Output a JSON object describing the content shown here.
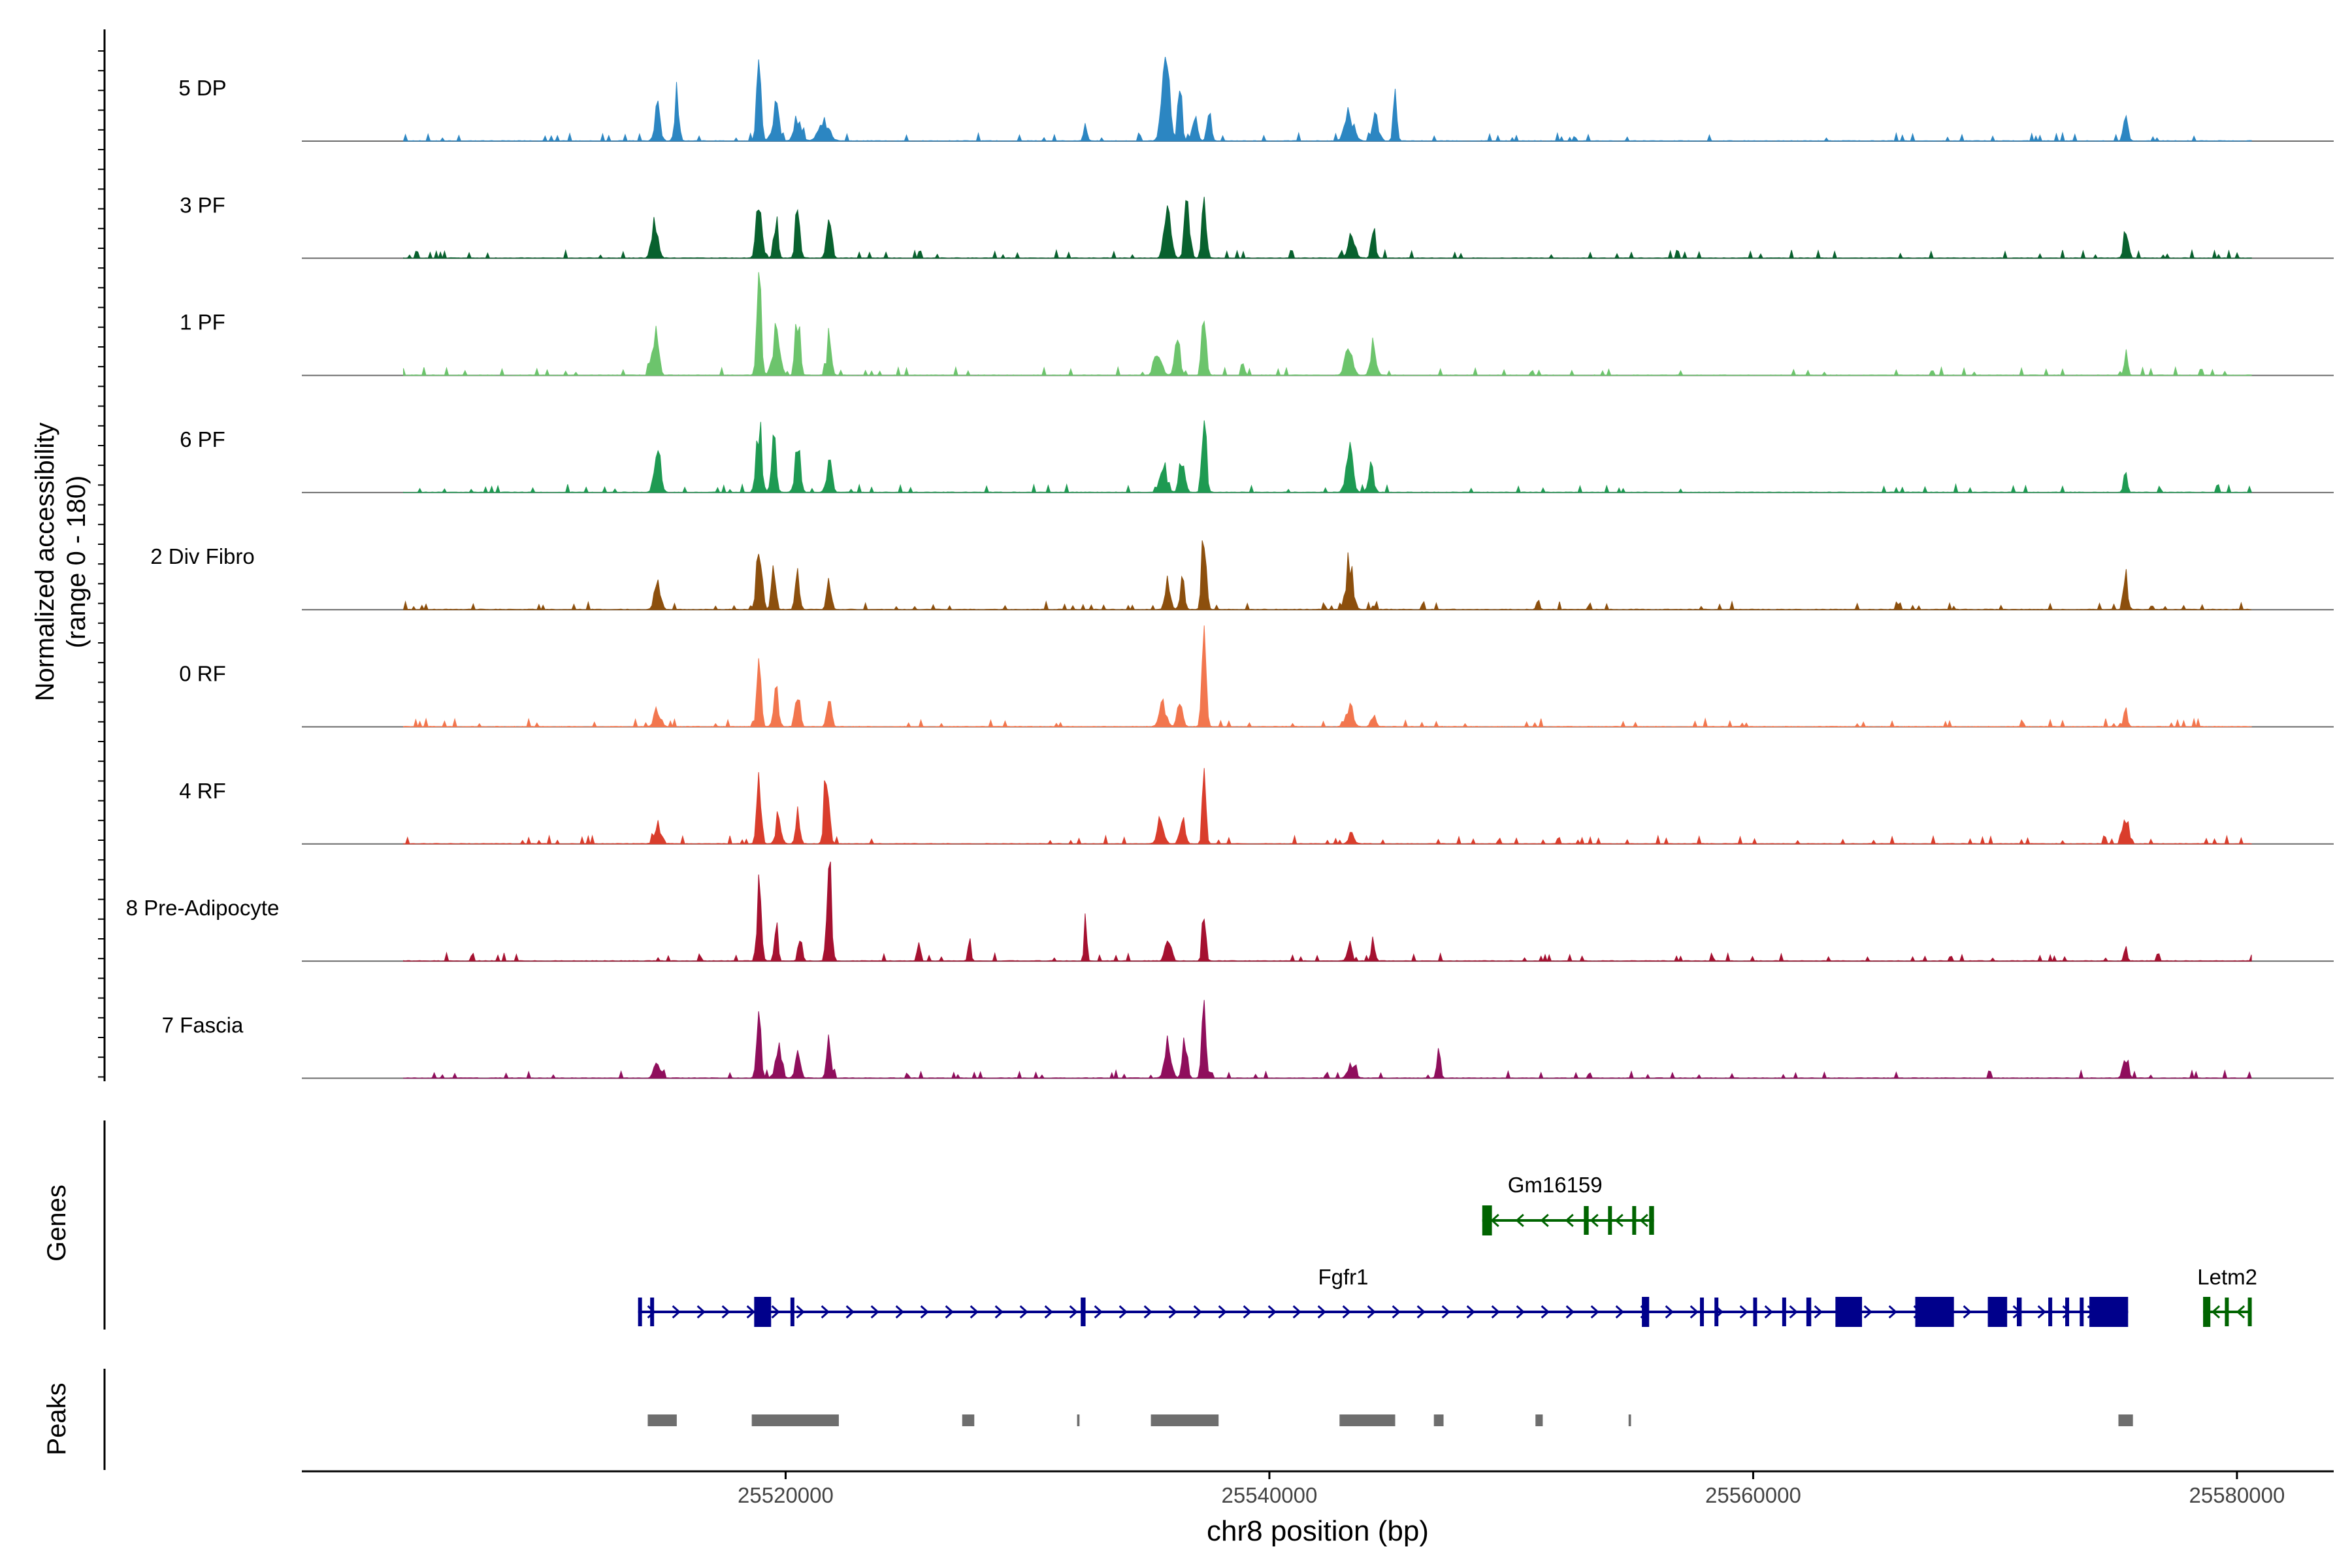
{
  "chart_data": {
    "type": "area",
    "subtype": "genome-coverage-track",
    "title": "",
    "xlabel": "chr8 position (bp)",
    "ylabel": "Normalized accessibility",
    "ylabel_sub": "(range 0 - 180)",
    "yrange": [
      0,
      180
    ],
    "xlim": [
      25500000,
      25584000
    ],
    "data_xlim": [
      25504200,
      25580600
    ],
    "xticks": [
      25520000,
      25540000,
      25560000,
      25580000
    ],
    "xtick_labels": [
      "25520000",
      "25540000",
      "25560000",
      "25580000"
    ],
    "track_labels": {
      "genes": "Genes",
      "peaks": "Peaks"
    },
    "tracks": [
      {
        "name": "5 DP",
        "color": "#2c86c2",
        "peaks": [
          [
            25514700,
            0.35,
            160
          ],
          [
            25515500,
            0.5,
            130
          ],
          [
            25518900,
            0.85,
            130
          ],
          [
            25519600,
            0.35,
            200
          ],
          [
            25520500,
            0.25,
            200
          ],
          [
            25521600,
            0.2,
            300
          ],
          [
            25532400,
            0.15,
            100
          ],
          [
            25535700,
            1.0,
            200
          ],
          [
            25536300,
            0.55,
            120
          ],
          [
            25536900,
            0.3,
            150
          ],
          [
            25537500,
            0.35,
            120
          ],
          [
            25543300,
            0.3,
            250
          ],
          [
            25544400,
            0.25,
            180
          ],
          [
            25545200,
            0.5,
            100
          ],
          [
            25575400,
            0.3,
            120
          ]
        ]
      },
      {
        "name": "3 PF",
        "color": "#08612e",
        "peaks": [
          [
            25514600,
            0.4,
            180
          ],
          [
            25518900,
            0.65,
            150
          ],
          [
            25519600,
            0.4,
            120
          ],
          [
            25520500,
            0.6,
            120
          ],
          [
            25521800,
            0.35,
            150
          ],
          [
            25535800,
            0.7,
            180
          ],
          [
            25536600,
            0.6,
            150
          ],
          [
            25537300,
            0.9,
            120
          ],
          [
            25543400,
            0.3,
            200
          ],
          [
            25544300,
            0.35,
            120
          ],
          [
            25575400,
            0.35,
            120
          ]
        ]
      },
      {
        "name": "1 PF",
        "color": "#6cc46c",
        "peaks": [
          [
            25514600,
            0.5,
            180
          ],
          [
            25518900,
            1.0,
            130
          ],
          [
            25519600,
            0.45,
            200
          ],
          [
            25520500,
            0.7,
            130
          ],
          [
            25521800,
            0.4,
            130
          ],
          [
            25535400,
            0.3,
            200
          ],
          [
            25536200,
            0.45,
            150
          ],
          [
            25537300,
            0.85,
            120
          ],
          [
            25538900,
            0.2,
            80
          ],
          [
            25543300,
            0.35,
            200
          ],
          [
            25544300,
            0.35,
            150
          ],
          [
            25575400,
            0.25,
            100
          ]
        ]
      },
      {
        "name": "6 PF",
        "color": "#1e9a52",
        "peaks": [
          [
            25514700,
            0.5,
            180
          ],
          [
            25518900,
            0.75,
            150
          ],
          [
            25519500,
            0.6,
            130
          ],
          [
            25520500,
            0.5,
            150
          ],
          [
            25521800,
            0.35,
            150
          ],
          [
            25535600,
            0.3,
            200
          ],
          [
            25536400,
            0.45,
            150
          ],
          [
            25537300,
            0.9,
            120
          ],
          [
            25543300,
            0.45,
            200
          ],
          [
            25544200,
            0.3,
            150
          ],
          [
            25575400,
            0.25,
            100
          ]
        ]
      },
      {
        "name": "2 Div Fibro",
        "color": "#8c4f0d",
        "peaks": [
          [
            25514700,
            0.3,
            180
          ],
          [
            25518900,
            0.8,
            150
          ],
          [
            25519500,
            0.55,
            120
          ],
          [
            25520500,
            0.45,
            120
          ],
          [
            25521800,
            0.3,
            130
          ],
          [
            25535800,
            0.3,
            150
          ],
          [
            25536400,
            0.4,
            120
          ],
          [
            25537300,
            0.9,
            120
          ],
          [
            25543300,
            0.5,
            200
          ],
          [
            25551100,
            0.15,
            80
          ],
          [
            25575400,
            0.35,
            120
          ]
        ]
      },
      {
        "name": "0 RF",
        "color": "#f2764e",
        "peaks": [
          [
            25514700,
            0.2,
            180
          ],
          [
            25518900,
            0.6,
            120
          ],
          [
            25519600,
            0.45,
            130
          ],
          [
            25520500,
            0.4,
            120
          ],
          [
            25521800,
            0.4,
            120
          ],
          [
            25535600,
            0.25,
            200
          ],
          [
            25536300,
            0.3,
            150
          ],
          [
            25537300,
            1.0,
            120
          ],
          [
            25543300,
            0.2,
            200
          ],
          [
            25544300,
            0.15,
            120
          ],
          [
            25575400,
            0.2,
            100
          ]
        ]
      },
      {
        "name": "4 RF",
        "color": "#d93d2c",
        "peaks": [
          [
            25514700,
            0.2,
            180
          ],
          [
            25518900,
            0.6,
            130
          ],
          [
            25519700,
            0.3,
            150
          ],
          [
            25520500,
            0.3,
            120
          ],
          [
            25521700,
            0.9,
            130
          ],
          [
            25535500,
            0.25,
            180
          ],
          [
            25536400,
            0.3,
            150
          ],
          [
            25537300,
            0.75,
            100
          ],
          [
            25543400,
            0.15,
            150
          ],
          [
            25575400,
            0.3,
            150
          ]
        ]
      },
      {
        "name": "8 Pre-Adipocyte",
        "color": "#a51130",
        "peaks": [
          [
            25518900,
            0.75,
            120
          ],
          [
            25519600,
            0.4,
            100
          ],
          [
            25520600,
            0.3,
            100
          ],
          [
            25521800,
            1.0,
            130
          ],
          [
            25525500,
            0.3,
            80
          ],
          [
            25527600,
            0.25,
            80
          ],
          [
            25532400,
            0.4,
            80
          ],
          [
            25535800,
            0.3,
            150
          ],
          [
            25537300,
            0.65,
            100
          ],
          [
            25543300,
            0.2,
            120
          ],
          [
            25544300,
            0.25,
            100
          ],
          [
            25575400,
            0.15,
            80
          ]
        ]
      },
      {
        "name": "7 Fascia",
        "color": "#8f0e5c",
        "peaks": [
          [
            25514700,
            0.2,
            180
          ],
          [
            25518900,
            0.6,
            130
          ],
          [
            25519700,
            0.35,
            180
          ],
          [
            25520500,
            0.25,
            150
          ],
          [
            25521800,
            0.45,
            120
          ],
          [
            25535800,
            0.3,
            200
          ],
          [
            25536500,
            0.35,
            150
          ],
          [
            25537300,
            0.8,
            120
          ],
          [
            25543400,
            0.15,
            200
          ],
          [
            25547000,
            0.3,
            100
          ],
          [
            25575400,
            0.25,
            150
          ]
        ]
      }
    ],
    "genes": [
      {
        "name": "Gm16159",
        "strand": "-",
        "color": "#006400",
        "start": 25548800,
        "end": 25555900,
        "exons": [
          [
            25548800,
            25549200
          ],
          [
            25553000,
            25553200
          ],
          [
            25554000,
            25554150
          ],
          [
            25555000,
            25555150
          ],
          [
            25555700,
            25555900
          ]
        ]
      },
      {
        "name": "Fgfr1",
        "strand": "+",
        "color": "#00008b",
        "start": 25513900,
        "end": 25575500,
        "exons": [
          [
            25513900,
            25514050
          ],
          [
            25514400,
            25514550
          ],
          [
            25518700,
            25519400
          ],
          [
            25520200,
            25520350
          ],
          [
            25532200,
            25532400
          ],
          [
            25555400,
            25555700
          ],
          [
            25557800,
            25557950
          ],
          [
            25558400,
            25558550
          ],
          [
            25560000,
            25560150
          ],
          [
            25561200,
            25561350
          ],
          [
            25562200,
            25562400
          ],
          [
            25563400,
            25564500
          ],
          [
            25566700,
            25568300
          ],
          [
            25569700,
            25570500
          ],
          [
            25570900,
            25571100
          ],
          [
            25572200,
            25572350
          ],
          [
            25572900,
            25573050
          ],
          [
            25573500,
            25573650
          ],
          [
            25573900,
            25575500
          ]
        ]
      },
      {
        "name": "Letm2",
        "strand": "-",
        "color": "#006400",
        "start": 25578600,
        "end": 25580600,
        "exons": [
          [
            25578600,
            25578900
          ],
          [
            25579500,
            25579650
          ],
          [
            25580450,
            25580600
          ]
        ]
      }
    ],
    "peaks_track": [
      [
        25514300,
        25515500
      ],
      [
        25518600,
        25522200
      ],
      [
        25527300,
        25527800
      ],
      [
        25532050,
        25532150
      ],
      [
        25535100,
        25537900
      ],
      [
        25542900,
        25545200
      ],
      [
        25546800,
        25547200
      ],
      [
        25551000,
        25551300
      ],
      [
        25554850,
        25554950
      ],
      [
        25575100,
        25575700
      ]
    ]
  }
}
